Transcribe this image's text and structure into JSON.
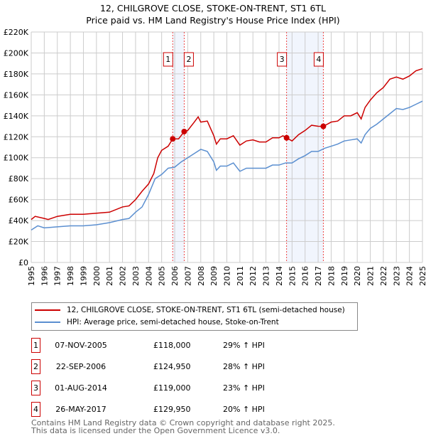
{
  "chart_data": {
    "type": "line",
    "title": "12, CHILGROVE CLOSE, STOKE-ON-TRENT, ST1 6TL",
    "subtitle": "Price paid vs. HM Land Registry's House Price Index (HPI)",
    "xlim": [
      1995,
      2025
    ],
    "ylim": [
      0,
      220000
    ],
    "x_ticks": [
      "1995",
      "1996",
      "1997",
      "1998",
      "1999",
      "2000",
      "2001",
      "2002",
      "2003",
      "2004",
      "2005",
      "2006",
      "2007",
      "2008",
      "2009",
      "2010",
      "2011",
      "2012",
      "2013",
      "2014",
      "2015",
      "2016",
      "2017",
      "2018",
      "2019",
      "2020",
      "2021",
      "2022",
      "2023",
      "2024",
      "2025"
    ],
    "y_ticks": [
      "£0",
      "£20K",
      "£40K",
      "£60K",
      "£80K",
      "£100K",
      "£120K",
      "£140K",
      "£160K",
      "£180K",
      "£200K",
      "£220K"
    ],
    "grid": true,
    "shaded_ranges": [
      [
        2005.85,
        2006.73
      ],
      [
        2014.58,
        2017.4
      ]
    ],
    "series": [
      {
        "name": "12, CHILGROVE CLOSE, STOKE-ON-TRENT, ST1 6TL (semi-detached house)",
        "color": "#cc0000",
        "x": [
          1995,
          1995.3,
          1996,
          1996.3,
          1997,
          1998,
          1999,
          2000,
          2001,
          2002,
          2002.5,
          2003,
          2003.5,
          2004,
          2004.4,
          2004.7,
          2005,
          2005.5,
          2005.85,
          2006.3,
          2006.73,
          2007,
          2007.5,
          2007.8,
          2008,
          2008.5,
          2009,
          2009.2,
          2009.5,
          2010,
          2010.5,
          2011,
          2011.5,
          2012,
          2012.5,
          2013,
          2013.5,
          2014,
          2014.3,
          2014.58,
          2015,
          2015.5,
          2016,
          2016.5,
          2017,
          2017.4,
          2018,
          2018.5,
          2019,
          2019.5,
          2020,
          2020.3,
          2020.6,
          2021,
          2021.5,
          2022,
          2022.5,
          2023,
          2023.5,
          2024,
          2024.5,
          2025
        ],
        "y": [
          41000,
          44000,
          42000,
          41000,
          44000,
          46000,
          46000,
          47000,
          48000,
          53000,
          54000,
          60000,
          68000,
          75000,
          85000,
          100000,
          107000,
          111000,
          118000,
          118000,
          124950,
          126000,
          134000,
          139000,
          134000,
          135000,
          121000,
          113000,
          118000,
          118000,
          121000,
          112000,
          116000,
          117000,
          115000,
          115000,
          119000,
          119000,
          121000,
          119000,
          116000,
          122000,
          126000,
          131000,
          130000,
          129950,
          134000,
          135000,
          140000,
          140000,
          143000,
          137000,
          148000,
          155000,
          162000,
          167000,
          175000,
          177000,
          175000,
          178000,
          183000,
          185000
        ]
      },
      {
        "name": "HPI: Average price, semi-detached house, Stoke-on-Trent",
        "color": "#5b8fd0",
        "x": [
          1995,
          1995.5,
          1996,
          1997,
          1998,
          1999,
          2000,
          2001,
          2002,
          2002.5,
          2003,
          2003.5,
          2004,
          2004.5,
          2005,
          2005.5,
          2006,
          2006.5,
          2007,
          2007.5,
          2008,
          2008.5,
          2009,
          2009.2,
          2009.5,
          2010,
          2010.5,
          2011,
          2011.5,
          2012,
          2012.5,
          2013,
          2013.5,
          2014,
          2014.5,
          2015,
          2015.5,
          2016,
          2016.5,
          2017,
          2017.5,
          2018,
          2018.5,
          2019,
          2019.5,
          2020,
          2020.3,
          2020.6,
          2021,
          2021.5,
          2022,
          2022.5,
          2023,
          2023.5,
          2024,
          2024.5,
          2025
        ],
        "y": [
          31000,
          35000,
          33000,
          34000,
          35000,
          35000,
          36000,
          38000,
          41000,
          42000,
          48000,
          53000,
          65000,
          80000,
          84000,
          90000,
          91000,
          96000,
          100000,
          104000,
          108000,
          106000,
          96000,
          88000,
          92000,
          92000,
          95000,
          87000,
          90000,
          90000,
          90000,
          90000,
          93000,
          93000,
          95000,
          95000,
          99000,
          102000,
          106000,
          106000,
          109000,
          111000,
          113000,
          116000,
          117000,
          118000,
          114000,
          122000,
          128000,
          132000,
          137000,
          142000,
          147000,
          146000,
          148000,
          151000,
          154000
        ]
      }
    ],
    "sales": [
      {
        "label": "1",
        "x": 2005.85,
        "y": 118000
      },
      {
        "label": "2",
        "x": 2006.73,
        "y": 124950
      },
      {
        "label": "3",
        "x": 2014.58,
        "y": 119000
      },
      {
        "label": "4",
        "x": 2017.4,
        "y": 129950
      }
    ]
  },
  "legend": {
    "red": "12, CHILGROVE CLOSE, STOKE-ON-TRENT, ST1 6TL (semi-detached house)",
    "blue": "HPI: Average price, semi-detached house, Stoke-on-Trent"
  },
  "table": [
    {
      "num": "1",
      "date": "07-NOV-2005",
      "price": "£118,000",
      "hpi": "29% ↑ HPI"
    },
    {
      "num": "2",
      "date": "22-SEP-2006",
      "price": "£124,950",
      "hpi": "28% ↑ HPI"
    },
    {
      "num": "3",
      "date": "01-AUG-2014",
      "price": "£119,000",
      "hpi": "23% ↑ HPI"
    },
    {
      "num": "4",
      "date": "26-MAY-2017",
      "price": "£129,950",
      "hpi": "20% ↑ HPI"
    }
  ],
  "footer": {
    "line1": "Contains HM Land Registry data © Crown copyright and database right 2025.",
    "line2": "This data is licensed under the Open Government Licence v3.0."
  }
}
